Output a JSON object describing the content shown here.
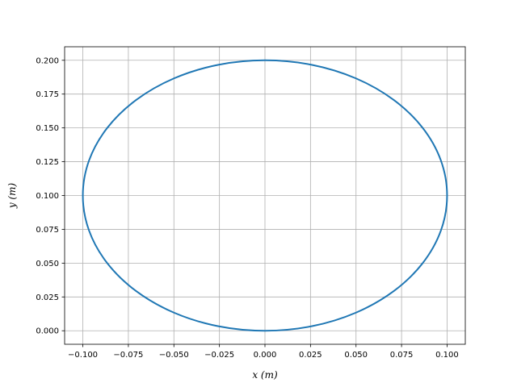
{
  "chart_data": {
    "type": "line",
    "title": "",
    "xlabel": "x (m)",
    "ylabel": "y (m)",
    "xlim": [
      -0.11,
      0.11
    ],
    "ylim": [
      -0.01,
      0.21
    ],
    "grid": true,
    "xticks": [
      -0.1,
      -0.075,
      -0.05,
      -0.025,
      0.0,
      0.025,
      0.05,
      0.075,
      0.1
    ],
    "xtick_labels": [
      "−0.100",
      "−0.075",
      "−0.050",
      "−0.025",
      "0.000",
      "0.025",
      "0.050",
      "0.075",
      "0.100"
    ],
    "yticks": [
      0.0,
      0.025,
      0.05,
      0.075,
      0.1,
      0.125,
      0.15,
      0.175,
      0.2
    ],
    "ytick_labels": [
      "0.000",
      "0.025",
      "0.050",
      "0.075",
      "0.100",
      "0.125",
      "0.150",
      "0.175",
      "0.200"
    ],
    "series": [
      {
        "color": "#1f77b4",
        "x": [
          0.1,
          0.0966,
          0.0866,
          0.0707,
          0.05,
          0.0259,
          0.0,
          -0.0259,
          -0.05,
          -0.0707,
          -0.0866,
          -0.0966,
          -0.1,
          -0.0966,
          -0.0866,
          -0.0707,
          -0.05,
          -0.0259,
          0.0,
          0.0259,
          0.05,
          0.0707,
          0.0866,
          0.0966,
          0.1
        ],
        "y": [
          0.1,
          0.1259,
          0.15,
          0.1707,
          0.1866,
          0.1966,
          0.2,
          0.1966,
          0.1866,
          0.1707,
          0.15,
          0.1259,
          0.1,
          0.0741,
          0.05,
          0.0293,
          0.0134,
          0.0034,
          0.0,
          0.0034,
          0.0134,
          0.0293,
          0.05,
          0.0741,
          0.1
        ]
      }
    ]
  }
}
